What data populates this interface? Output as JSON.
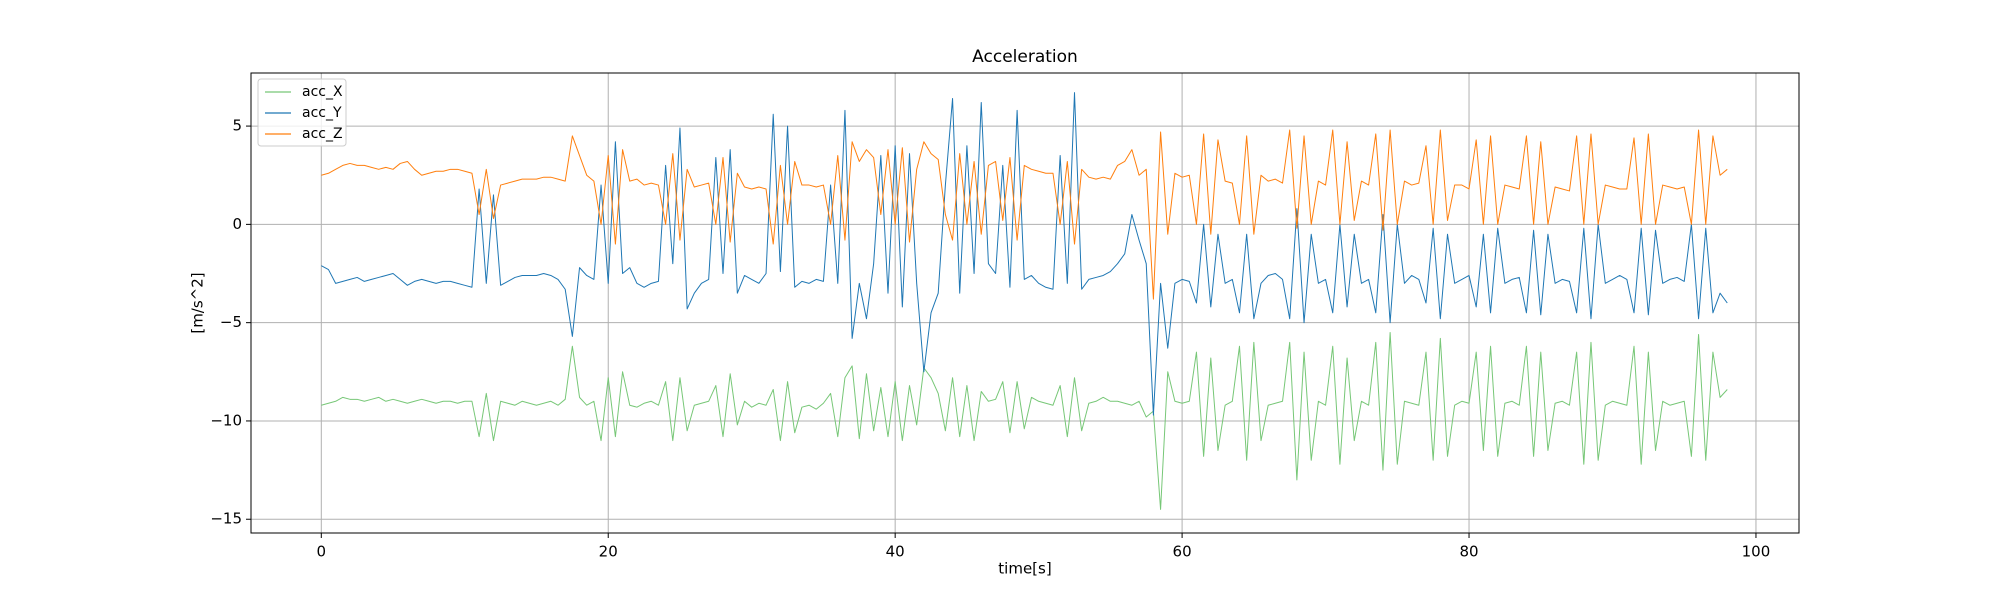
{
  "chart_data": {
    "type": "line",
    "title": "Acceleration",
    "x_label": "time[s]",
    "y_label": "[m/s^2]",
    "x": [
      0,
      0.5,
      1,
      1.5,
      2,
      2.5,
      3,
      3.5,
      4,
      4.5,
      5,
      5.5,
      6,
      6.5,
      7,
      7.5,
      8,
      8.5,
      9,
      9.5,
      10,
      10.5,
      11,
      11.5,
      12,
      12.5,
      13,
      13.5,
      14,
      14.5,
      15,
      15.5,
      16,
      16.5,
      17,
      17.5,
      18,
      18.5,
      19,
      19.5,
      20,
      20.5,
      21,
      21.5,
      22,
      22.5,
      23,
      23.5,
      24,
      24.5,
      25,
      25.5,
      26,
      26.5,
      27,
      27.5,
      28,
      28.5,
      29,
      29.5,
      30,
      30.5,
      31,
      31.5,
      32,
      32.5,
      33,
      33.5,
      34,
      34.5,
      35,
      35.5,
      36,
      36.5,
      37,
      37.5,
      38,
      38.5,
      39,
      39.5,
      40,
      40.5,
      41,
      41.5,
      42,
      42.5,
      43,
      43.5,
      44,
      44.5,
      45,
      45.5,
      46,
      46.5,
      47,
      47.5,
      48,
      48.5,
      49,
      49.5,
      50,
      50.5,
      51,
      51.5,
      52,
      52.5,
      53,
      53.5,
      54,
      54.5,
      55,
      55.5,
      56,
      56.5,
      57,
      57.5,
      58,
      58.5,
      59,
      59.5,
      60,
      60.5,
      61,
      61.5,
      62,
      62.5,
      63,
      63.5,
      64,
      64.5,
      65,
      65.5,
      66,
      66.5,
      67,
      67.5,
      68,
      68.5,
      69,
      69.5,
      70,
      70.5,
      71,
      71.5,
      72,
      72.5,
      73,
      73.5,
      74,
      74.5,
      75,
      75.5,
      76,
      76.5,
      77,
      77.5,
      78,
      78.5,
      79,
      79.5,
      80,
      80.5,
      81,
      81.5,
      82,
      82.5,
      83,
      83.5,
      84,
      84.5,
      85,
      85.5,
      86,
      86.5,
      87,
      87.5,
      88,
      88.5,
      89,
      89.5,
      90,
      90.5,
      91,
      91.5,
      92,
      92.5,
      93,
      93.5,
      94,
      94.5,
      95,
      95.5,
      96,
      96.5,
      97,
      97.5,
      98
    ],
    "series": [
      {
        "name": "acc_X",
        "color": "#77c777",
        "values": [
          -9.2,
          -9.1,
          -9.0,
          -8.8,
          -8.9,
          -8.9,
          -9.0,
          -8.9,
          -8.8,
          -9.0,
          -8.9,
          -9.0,
          -9.1,
          -9.0,
          -8.9,
          -9.0,
          -9.1,
          -9.0,
          -9.0,
          -9.1,
          -9.0,
          -9.0,
          -10.8,
          -8.6,
          -11.0,
          -9.0,
          -9.1,
          -9.2,
          -9.0,
          -9.1,
          -9.2,
          -9.1,
          -9.0,
          -9.2,
          -8.9,
          -6.2,
          -8.8,
          -9.2,
          -9.0,
          -11.0,
          -7.8,
          -10.8,
          -7.5,
          -9.2,
          -9.3,
          -9.1,
          -9.0,
          -9.2,
          -8.0,
          -11.0,
          -7.8,
          -10.5,
          -9.2,
          -9.1,
          -9.0,
          -8.2,
          -10.8,
          -7.6,
          -10.2,
          -9.0,
          -9.3,
          -9.1,
          -9.2,
          -8.4,
          -11.0,
          -8.0,
          -10.6,
          -9.3,
          -9.2,
          -9.4,
          -9.1,
          -8.6,
          -10.8,
          -7.8,
          -7.2,
          -10.9,
          -7.6,
          -10.5,
          -8.3,
          -10.8,
          -8.0,
          -11.0,
          -8.2,
          -10.2,
          -7.3,
          -7.8,
          -8.6,
          -10.5,
          -7.8,
          -10.8,
          -8.2,
          -11.0,
          -8.5,
          -9.0,
          -8.9,
          -8.0,
          -10.6,
          -8.0,
          -10.4,
          -8.8,
          -9.0,
          -9.1,
          -9.2,
          -8.2,
          -10.8,
          -7.8,
          -10.5,
          -9.1,
          -9.0,
          -8.8,
          -9.0,
          -9.0,
          -9.1,
          -9.2,
          -9.0,
          -9.8,
          -9.5,
          -14.5,
          -7.5,
          -9.0,
          -9.1,
          -9.0,
          -6.5,
          -11.8,
          -6.8,
          -11.5,
          -9.2,
          -9.0,
          -6.2,
          -12.0,
          -6.0,
          -11.0,
          -9.2,
          -9.1,
          -9.0,
          -6.0,
          -13.0,
          -6.5,
          -12.0,
          -9.0,
          -9.2,
          -6.2,
          -12.2,
          -6.8,
          -11.0,
          -9.0,
          -9.2,
          -6.0,
          -12.5,
          -5.5,
          -12.2,
          -9.0,
          -9.1,
          -9.2,
          -6.5,
          -12.0,
          -5.8,
          -11.8,
          -9.2,
          -9.0,
          -9.1,
          -6.5,
          -11.5,
          -6.2,
          -11.8,
          -9.1,
          -9.0,
          -9.2,
          -6.2,
          -11.8,
          -6.5,
          -11.5,
          -9.1,
          -9.0,
          -9.2,
          -6.5,
          -12.2,
          -6.0,
          -12.0,
          -9.2,
          -9.0,
          -9.1,
          -9.2,
          -6.2,
          -12.2,
          -6.5,
          -11.5,
          -9.0,
          -9.2,
          -9.1,
          -9.0,
          -11.8,
          -5.6,
          -12.0,
          -6.5,
          -8.8,
          -8.4
        ]
      },
      {
        "name": "acc_Y",
        "color": "#1f77b4",
        "values": [
          -2.1,
          -2.3,
          -3.0,
          -2.9,
          -2.8,
          -2.7,
          -2.9,
          -2.8,
          -2.7,
          -2.6,
          -2.5,
          -2.8,
          -3.1,
          -2.9,
          -2.8,
          -2.9,
          -3.0,
          -2.9,
          -2.9,
          -3.0,
          -3.1,
          -3.2,
          1.8,
          -3.0,
          1.5,
          -3.1,
          -2.9,
          -2.7,
          -2.6,
          -2.6,
          -2.6,
          -2.5,
          -2.6,
          -2.8,
          -3.3,
          -5.7,
          -2.2,
          -2.6,
          -2.8,
          2.0,
          -3.0,
          4.2,
          -2.5,
          -2.2,
          -3.0,
          -3.2,
          -3.0,
          -2.9,
          3.0,
          -2.0,
          4.9,
          -4.3,
          -3.5,
          -3.0,
          -2.8,
          3.4,
          -2.5,
          3.8,
          -3.5,
          -2.6,
          -2.8,
          -3.0,
          -2.5,
          5.6,
          -2.4,
          5.0,
          -3.2,
          -2.9,
          -3.0,
          -2.8,
          -2.9,
          2.0,
          -3.0,
          5.8,
          -5.8,
          -3.0,
          -4.8,
          -2.0,
          3.5,
          -3.5,
          4.0,
          -4.2,
          3.6,
          -3.0,
          -7.5,
          -4.5,
          -3.5,
          2.0,
          6.4,
          -3.5,
          4.0,
          -2.5,
          6.2,
          -2.0,
          -2.5,
          3.0,
          -3.2,
          5.8,
          -2.8,
          -2.6,
          -3.0,
          -3.2,
          -3.3,
          3.5,
          -3.0,
          6.7,
          -3.3,
          -2.8,
          -2.7,
          -2.6,
          -2.4,
          -2.0,
          -1.5,
          0.5,
          -0.8,
          -2.0,
          -9.7,
          -3.0,
          -6.3,
          -3.0,
          -2.8,
          -2.9,
          -4.0,
          0.0,
          -4.2,
          -0.5,
          -3.0,
          -2.8,
          -4.5,
          -0.5,
          -4.8,
          -3.0,
          -2.6,
          -2.5,
          -2.8,
          -4.8,
          0.8,
          -5.0,
          -0.5,
          -3.0,
          -2.8,
          -4.5,
          0.0,
          -4.2,
          -0.5,
          -3.0,
          -2.8,
          -4.5,
          0.5,
          -5.0,
          0.0,
          -3.0,
          -2.6,
          -2.8,
          -4.0,
          -0.2,
          -4.8,
          -0.5,
          -3.0,
          -2.8,
          -2.6,
          -4.2,
          -0.5,
          -4.5,
          -0.2,
          -3.0,
          -2.8,
          -2.7,
          -4.5,
          -0.3,
          -4.6,
          -0.5,
          -3.0,
          -2.8,
          -2.9,
          -4.5,
          -0.2,
          -4.8,
          0.0,
          -3.0,
          -2.8,
          -2.6,
          -2.8,
          -4.5,
          -0.2,
          -4.6,
          -0.3,
          -3.0,
          -2.8,
          -2.7,
          -2.9,
          0.0,
          -4.8,
          -0.2,
          -4.5,
          -3.5,
          -4.0
        ]
      },
      {
        "name": "acc_Z",
        "color": "#ff7f0e",
        "values": [
          2.5,
          2.6,
          2.8,
          3.0,
          3.1,
          3.0,
          3.0,
          2.9,
          2.8,
          2.9,
          2.8,
          3.1,
          3.2,
          2.8,
          2.5,
          2.6,
          2.7,
          2.7,
          2.8,
          2.8,
          2.7,
          2.6,
          0.5,
          2.8,
          0.3,
          2.0,
          2.1,
          2.2,
          2.3,
          2.3,
          2.3,
          2.4,
          2.4,
          2.3,
          2.2,
          4.5,
          3.5,
          2.5,
          2.2,
          0.0,
          3.5,
          -1.0,
          3.8,
          2.2,
          2.3,
          2.0,
          2.1,
          2.0,
          0.0,
          3.6,
          -0.8,
          2.8,
          1.9,
          2.0,
          2.1,
          0.0,
          3.4,
          -0.9,
          2.6,
          1.9,
          1.8,
          1.9,
          1.8,
          -1.0,
          3.0,
          0.0,
          3.2,
          2.0,
          2.0,
          1.9,
          2.0,
          0.0,
          3.5,
          -0.8,
          4.2,
          3.2,
          3.8,
          3.4,
          0.5,
          3.8,
          0.0,
          3.9,
          -0.9,
          2.8,
          4.2,
          3.6,
          3.3,
          0.5,
          -0.8,
          3.6,
          0.0,
          3.2,
          -0.5,
          3.0,
          3.2,
          0.2,
          3.4,
          -0.8,
          3.0,
          2.8,
          2.7,
          2.6,
          2.6,
          0.0,
          3.2,
          -1.0,
          2.8,
          2.4,
          2.3,
          2.4,
          2.3,
          3.0,
          3.2,
          3.8,
          2.5,
          2.8,
          -3.8,
          4.7,
          -0.5,
          2.6,
          2.4,
          2.5,
          0.0,
          4.6,
          -0.5,
          4.3,
          2.2,
          2.1,
          0.0,
          4.5,
          -0.5,
          2.5,
          2.2,
          2.3,
          2.1,
          4.8,
          -0.2,
          4.5,
          0.0,
          2.2,
          2.0,
          4.8,
          0.0,
          4.2,
          0.2,
          2.2,
          2.0,
          4.6,
          -0.3,
          4.8,
          0.0,
          2.2,
          2.0,
          2.1,
          4.0,
          0.0,
          4.8,
          0.2,
          2.0,
          2.0,
          1.8,
          4.3,
          0.0,
          4.5,
          0.0,
          2.0,
          1.9,
          1.8,
          4.5,
          0.0,
          4.2,
          0.0,
          1.9,
          1.8,
          1.7,
          4.5,
          0.0,
          4.6,
          0.0,
          2.0,
          1.9,
          1.8,
          1.8,
          4.4,
          0.0,
          4.6,
          0.0,
          2.0,
          1.9,
          1.8,
          1.9,
          0.0,
          4.8,
          0.0,
          4.5,
          2.5,
          2.8
        ]
      }
    ],
    "xlim": [
      -4.9,
      103.0
    ],
    "ylim": [
      -15.7,
      7.7
    ],
    "xticks": [
      0,
      20,
      40,
      60,
      80,
      100
    ],
    "yticks": [
      {
        "value": -15,
        "label": "−15"
      },
      {
        "value": -10,
        "label": "−10"
      },
      {
        "value": -5,
        "label": "−5"
      },
      0,
      5
    ],
    "grid": true,
    "legend": "upper left"
  }
}
